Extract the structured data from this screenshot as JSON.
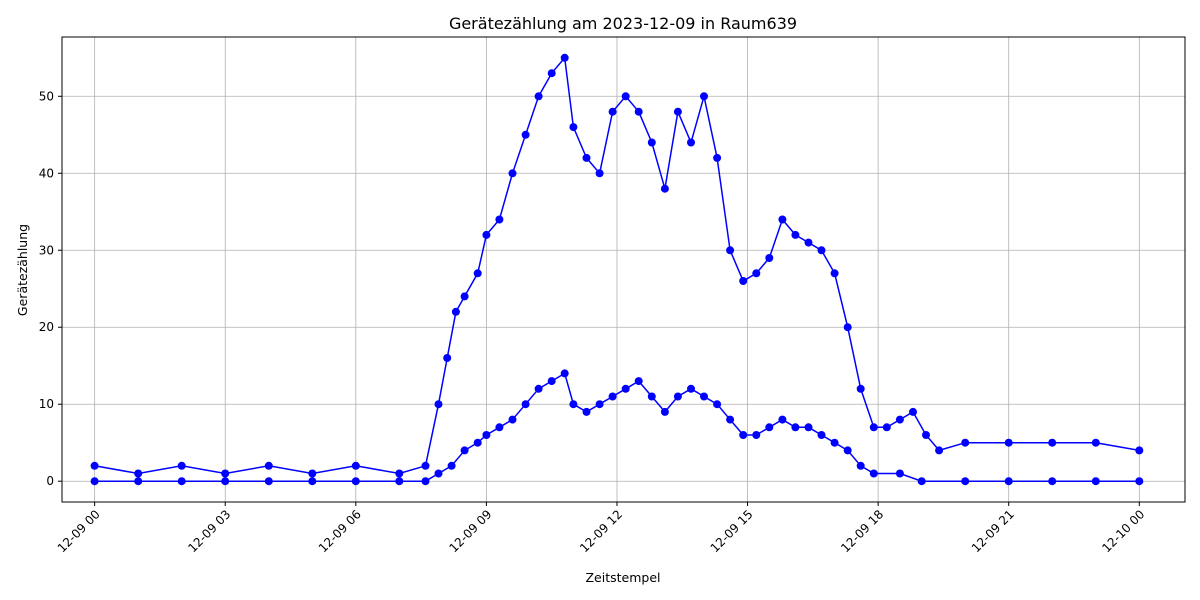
{
  "chart_data": {
    "type": "line",
    "title": "Gerätezählung am 2023-12-09 in Raum639",
    "xlabel": "Zeitstempel",
    "ylabel": "Gerätezählung",
    "x_range_hours": [
      -0.75,
      25.05
    ],
    "ylim": [
      -2.7,
      57.7
    ],
    "grid": true,
    "legend": "none",
    "color": "#0000ff",
    "x_ticks": [
      {
        "hour": 0,
        "label": "12-09 00"
      },
      {
        "hour": 3,
        "label": "12-09 03"
      },
      {
        "hour": 6,
        "label": "12-09 06"
      },
      {
        "hour": 9,
        "label": "12-09 09"
      },
      {
        "hour": 12,
        "label": "12-09 12"
      },
      {
        "hour": 15,
        "label": "12-09 15"
      },
      {
        "hour": 18,
        "label": "12-09 18"
      },
      {
        "hour": 21,
        "label": "12-09 21"
      },
      {
        "hour": 24,
        "label": "12-10 00"
      }
    ],
    "y_ticks": [
      0,
      10,
      20,
      30,
      40,
      50
    ],
    "series": [
      {
        "x_hours": [
          0,
          1,
          2,
          3,
          4,
          5,
          6,
          7,
          7.6,
          7.9,
          8.1,
          8.3,
          8.5,
          8.8,
          9.0,
          9.3,
          9.6,
          9.9,
          10.2,
          10.5,
          10.8,
          11.0,
          11.3,
          11.6,
          11.9,
          12.2,
          12.5,
          12.8,
          13.1,
          13.4,
          13.7,
          14.0,
          14.3,
          14.6,
          14.9,
          15.2,
          15.5,
          15.8,
          16.1,
          16.4,
          16.7,
          17.0,
          17.3,
          17.6,
          17.9,
          18.2,
          18.5,
          18.8,
          19.1,
          19.4,
          20,
          21,
          22,
          23,
          24
        ],
        "y": [
          2,
          1,
          2,
          1,
          2,
          1,
          2,
          1,
          2,
          10,
          16,
          22,
          24,
          27,
          32,
          34,
          40,
          45,
          50,
          53,
          55,
          46,
          42,
          40,
          48,
          50,
          48,
          44,
          38,
          48,
          44,
          50,
          42,
          30,
          26,
          27,
          29,
          34,
          32,
          31,
          30,
          27,
          20,
          12,
          7,
          7,
          8,
          9,
          6,
          4,
          5,
          5,
          5,
          5,
          4
        ]
      },
      {
        "x_hours": [
          0,
          1,
          2,
          3,
          4,
          5,
          6,
          7,
          7.6,
          7.9,
          8.2,
          8.5,
          8.8,
          9.0,
          9.3,
          9.6,
          9.9,
          10.2,
          10.5,
          10.8,
          11.0,
          11.3,
          11.6,
          11.9,
          12.2,
          12.5,
          12.8,
          13.1,
          13.4,
          13.7,
          14.0,
          14.3,
          14.6,
          14.9,
          15.2,
          15.5,
          15.8,
          16.1,
          16.4,
          16.7,
          17.0,
          17.3,
          17.6,
          17.9,
          18.5,
          19,
          20,
          21,
          22,
          23,
          24
        ],
        "y": [
          0,
          0,
          0,
          0,
          0,
          0,
          0,
          0,
          0,
          1,
          2,
          4,
          5,
          6,
          7,
          8,
          10,
          12,
          13,
          14,
          10,
          9,
          10,
          11,
          12,
          13,
          11,
          9,
          11,
          12,
          11,
          10,
          8,
          6,
          6,
          7,
          8,
          7,
          7,
          6,
          5,
          4,
          2,
          1,
          1,
          0,
          0,
          0,
          0,
          0,
          0
        ]
      }
    ]
  }
}
